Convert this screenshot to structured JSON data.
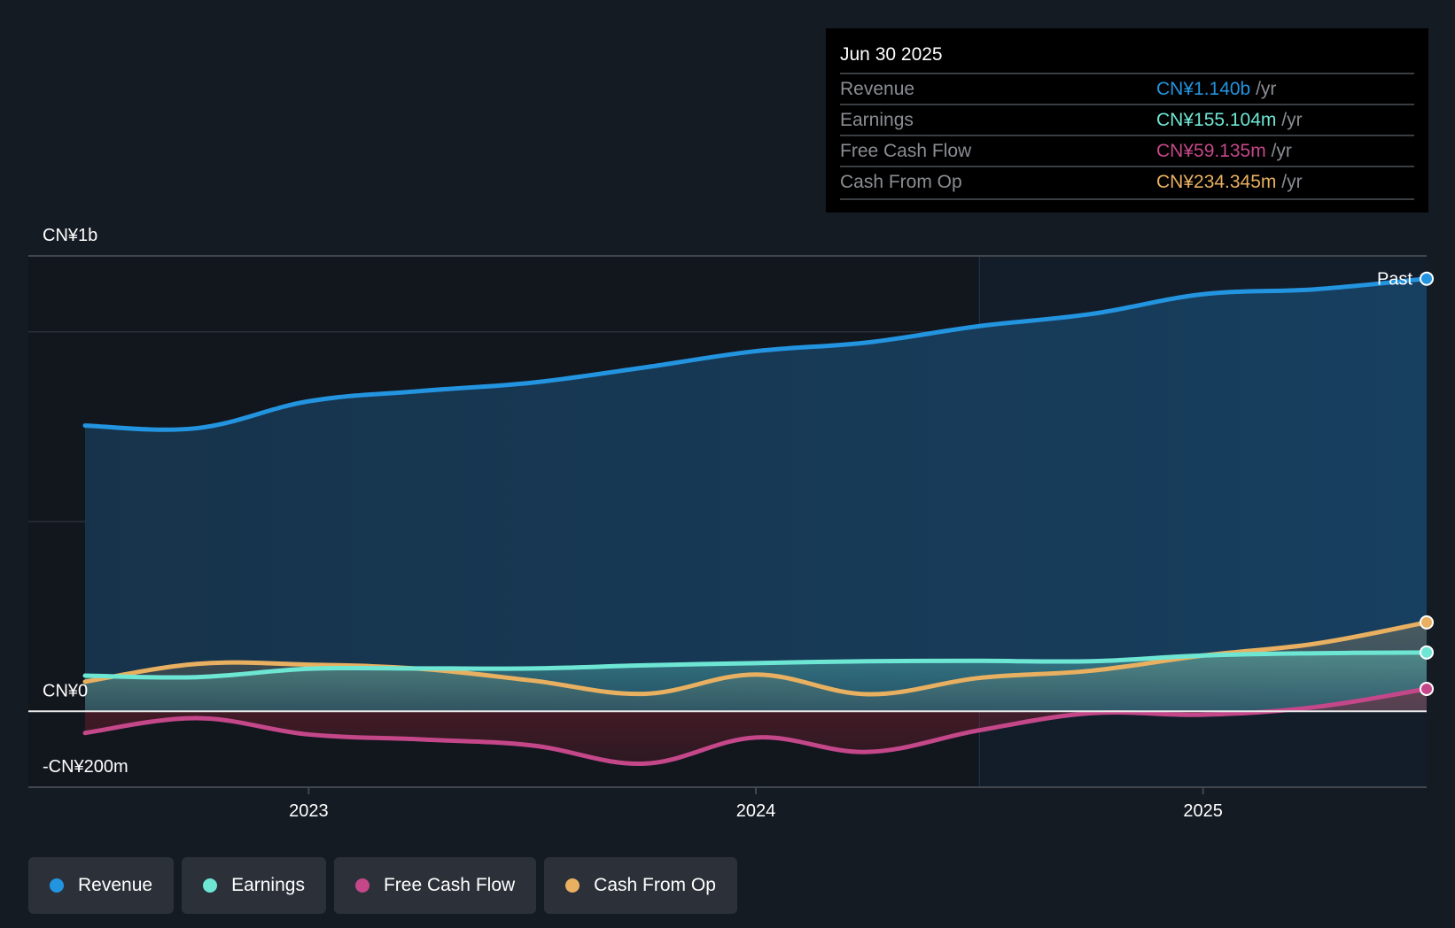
{
  "tooltip": {
    "date": "Jun 30 2025",
    "rows": [
      {
        "name": "Revenue",
        "value": "CN¥1.140b",
        "unit": "/yr",
        "color": "#2394df"
      },
      {
        "name": "Earnings",
        "value": "CN¥155.104m",
        "unit": "/yr",
        "color": "#6ee6d4"
      },
      {
        "name": "Free Cash Flow",
        "value": "CN¥59.135m",
        "unit": "/yr",
        "color": "#c4478a"
      },
      {
        "name": "Cash From Op",
        "value": "CN¥234.345m",
        "unit": "/yr",
        "color": "#e8b060"
      }
    ]
  },
  "legend": [
    {
      "label": "Revenue",
      "color": "#2394df"
    },
    {
      "label": "Earnings",
      "color": "#6ee6d4"
    },
    {
      "label": "Free Cash Flow",
      "color": "#c4478a"
    },
    {
      "label": "Cash From Op",
      "color": "#e8b060"
    }
  ],
  "chart_data": {
    "type": "line",
    "title": "",
    "xlabel": "",
    "ylabel": "",
    "currency": "CN¥",
    "units": "millions",
    "x": [
      "Jun 2022",
      "Sep 2022",
      "Dec 2022",
      "Mar 2023",
      "Jun 2023",
      "Sep 2023",
      "Dec 2023",
      "Mar 2024",
      "Jun 2024",
      "Sep 2024",
      "Dec 2024",
      "Mar 2025",
      "Jun 2025"
    ],
    "x_numeric": [
      2022.5,
      2022.75,
      2023.0,
      2023.25,
      2023.5,
      2023.75,
      2024.0,
      2024.25,
      2024.5,
      2024.75,
      2025.0,
      2025.25,
      2025.5
    ],
    "xlim": [
      2022.37,
      2025.5
    ],
    "ylim": [
      -200,
      1200
    ],
    "y_tick_labels": [
      {
        "value": 1200,
        "label": "CN¥1b"
      },
      {
        "value": 0,
        "label": "CN¥0"
      },
      {
        "value": -200,
        "label": "-CN¥200m"
      }
    ],
    "y_gridlines": [
      1200,
      1000,
      500,
      0,
      -200
    ],
    "x_ticks": [
      {
        "value": 2023,
        "label": "2023"
      },
      {
        "value": 2024,
        "label": "2024"
      },
      {
        "value": 2025,
        "label": "2025"
      }
    ],
    "past_region_start": 2024.5,
    "past_label": "Past",
    "legend_position": "bottom-left",
    "series": [
      {
        "name": "Revenue",
        "color": "#2394df",
        "fill": true,
        "values": [
          753,
          746,
          817,
          844,
          866,
          906,
          949,
          972,
          1015,
          1047,
          1099,
          1112,
          1140
        ]
      },
      {
        "name": "Earnings",
        "color": "#6ee6d4",
        "fill": true,
        "values": [
          94,
          90,
          112,
          113,
          113,
          121,
          127,
          132,
          133,
          132,
          147,
          153,
          155.104
        ]
      },
      {
        "name": "Free Cash Flow",
        "color": "#c4478a",
        "fill": true,
        "values": [
          -57,
          -18,
          -61,
          -74,
          -90,
          -138,
          -69,
          -107,
          -50,
          -5,
          -9,
          11,
          59.135
        ]
      },
      {
        "name": "Cash From Op",
        "color": "#e8b060",
        "fill": true,
        "values": [
          78,
          125,
          123,
          112,
          81,
          46,
          97,
          45,
          88,
          107,
          147,
          178,
          234.345
        ]
      }
    ]
  }
}
